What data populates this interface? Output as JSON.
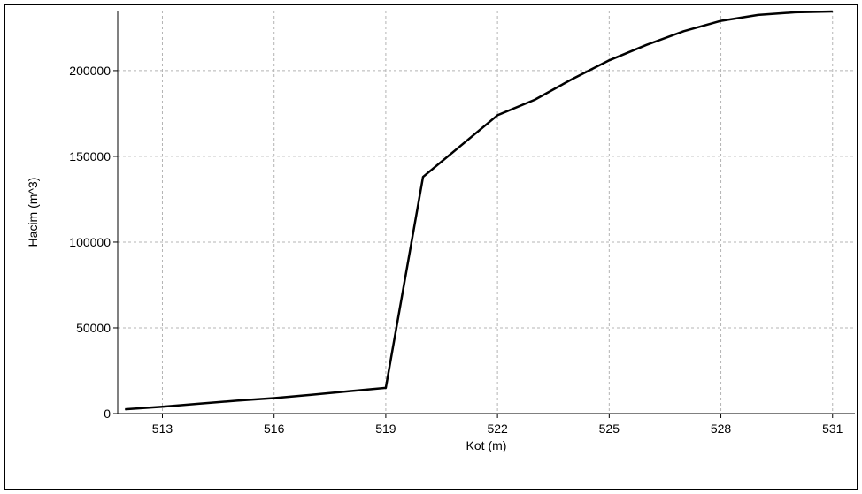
{
  "chart_data": {
    "type": "line",
    "xlabel": "Kot (m)",
    "ylabel": "Hacim (m^3)",
    "xlim": [
      511.8,
      531.6
    ],
    "ylim": [
      0,
      235000
    ],
    "grid": true,
    "x_ticks": [
      513,
      516,
      519,
      522,
      525,
      528,
      531
    ],
    "y_ticks": [
      0,
      50000,
      100000,
      150000,
      200000
    ],
    "x_tick_labels": [
      "513",
      "516",
      "519",
      "522",
      "525",
      "528",
      "531"
    ],
    "y_tick_labels": [
      "0",
      "50000",
      "100000",
      "150000",
      "200000"
    ],
    "series": [
      {
        "x": [
          512,
          513,
          514,
          515,
          516,
          517,
          518,
          519,
          520,
          521,
          522,
          523,
          524,
          525,
          526,
          527,
          528,
          529,
          530,
          531
        ],
        "y": [
          2500,
          4000,
          5800,
          7500,
          9000,
          11000,
          13000,
          15000,
          138000,
          156000,
          174000,
          183000,
          195000,
          206000,
          215000,
          223000,
          229000,
          232500,
          234000,
          234500
        ]
      }
    ],
    "colors": {
      "line": "#000000",
      "grid": "#b4b4b4",
      "axis": "#000000"
    }
  }
}
